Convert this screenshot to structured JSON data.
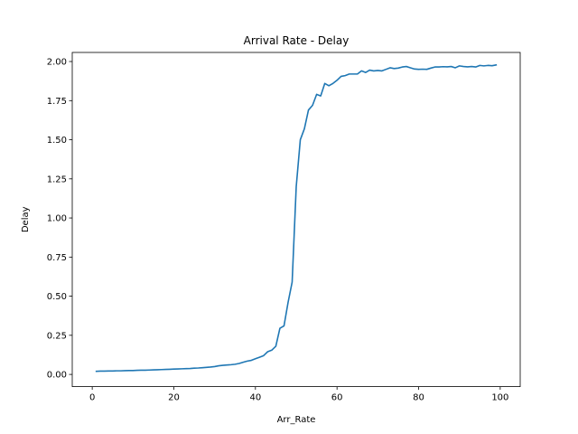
{
  "chart_data": {
    "type": "line",
    "title": "Arrival Rate - Delay",
    "xlabel": "Arr_Rate",
    "ylabel": "Delay",
    "xlim": [
      -4.9,
      104.9
    ],
    "ylim": [
      -0.078,
      2.058
    ],
    "xticks": [
      "0",
      "20",
      "40",
      "60",
      "80",
      "100"
    ],
    "yticks": [
      "0.00",
      "0.25",
      "0.50",
      "0.75",
      "1.00",
      "1.25",
      "1.50",
      "1.75",
      "2.00"
    ],
    "grid": false,
    "line_color": "#1f77b4",
    "series": [
      {
        "x": [
          1,
          2,
          3,
          4,
          5,
          6,
          7,
          8,
          9,
          10,
          11,
          12,
          13,
          14,
          15,
          16,
          17,
          18,
          19,
          20,
          21,
          22,
          23,
          24,
          25,
          26,
          27,
          28,
          29,
          30,
          31,
          32,
          33,
          34,
          35,
          36,
          37,
          38,
          39,
          40,
          41,
          42,
          43,
          44,
          45,
          46,
          47,
          48,
          49,
          50,
          51,
          52,
          53,
          54,
          55,
          56,
          57,
          58,
          59,
          60,
          61,
          62,
          63,
          64,
          65,
          66,
          67,
          68,
          69,
          70,
          71,
          72,
          73,
          74,
          75,
          76,
          77,
          78,
          79,
          80,
          81,
          82,
          83,
          84,
          85,
          86,
          87,
          88,
          89,
          90,
          91,
          92,
          93,
          94,
          95,
          96,
          97,
          98,
          99
        ],
        "y": [
          0.02,
          0.021,
          0.021,
          0.022,
          0.022,
          0.023,
          0.023,
          0.024,
          0.025,
          0.025,
          0.026,
          0.027,
          0.027,
          0.028,
          0.029,
          0.03,
          0.031,
          0.032,
          0.033,
          0.034,
          0.035,
          0.036,
          0.037,
          0.038,
          0.04,
          0.041,
          0.043,
          0.045,
          0.047,
          0.05,
          0.055,
          0.058,
          0.06,
          0.062,
          0.065,
          0.07,
          0.078,
          0.085,
          0.09,
          0.1,
          0.11,
          0.12,
          0.145,
          0.155,
          0.18,
          0.295,
          0.31,
          0.46,
          0.59,
          1.2,
          1.5,
          1.57,
          1.69,
          1.72,
          1.79,
          1.78,
          1.86,
          1.845,
          1.86,
          1.88,
          1.905,
          1.91,
          1.92,
          1.92,
          1.92,
          1.94,
          1.93,
          1.945,
          1.94,
          1.943,
          1.94,
          1.95,
          1.96,
          1.955,
          1.958,
          1.965,
          1.968,
          1.96,
          1.952,
          1.95,
          1.951,
          1.95,
          1.958,
          1.965,
          1.965,
          1.967,
          1.966,
          1.968,
          1.96,
          1.972,
          1.968,
          1.966,
          1.968,
          1.965,
          1.975,
          1.972,
          1.975,
          1.973,
          1.978
        ]
      }
    ]
  }
}
